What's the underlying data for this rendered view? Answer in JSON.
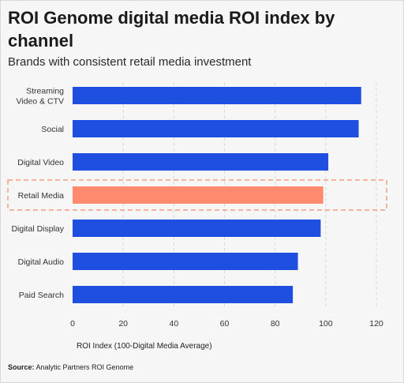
{
  "title": "ROI Genome digital media ROI index by channel",
  "subtitle": "Brands with consistent retail media investment",
  "source": {
    "label": "Source:",
    "text": "Analytic Partners ROI Genome"
  },
  "colors": {
    "bar": "#1f4fe0",
    "highlight_bar": "#ff8a6e",
    "highlight_border": "#f08a6a",
    "grid": "#d9d9d9"
  },
  "chart_data": {
    "type": "bar",
    "orientation": "horizontal",
    "categories": [
      "Streaming Video & CTV",
      "Social",
      "Digital Video",
      "Retail Media",
      "Digital Display",
      "Digital Audio",
      "Paid Search"
    ],
    "category_lines": [
      [
        "Streaming",
        "Video & CTV"
      ],
      [
        "Social"
      ],
      [
        "Digital Video"
      ],
      [
        "Retail Media"
      ],
      [
        "Digital Display"
      ],
      [
        "Digital Audio"
      ],
      [
        "Paid Search"
      ]
    ],
    "values": [
      114,
      113,
      101,
      99,
      98,
      89,
      87
    ],
    "highlight": "Retail Media",
    "xlabel": "ROI Index (100-Digital Media Average)",
    "xlim": [
      0,
      120
    ],
    "xticks": [
      0,
      20,
      40,
      60,
      80,
      100,
      120
    ],
    "grid": "vertical dashed"
  }
}
